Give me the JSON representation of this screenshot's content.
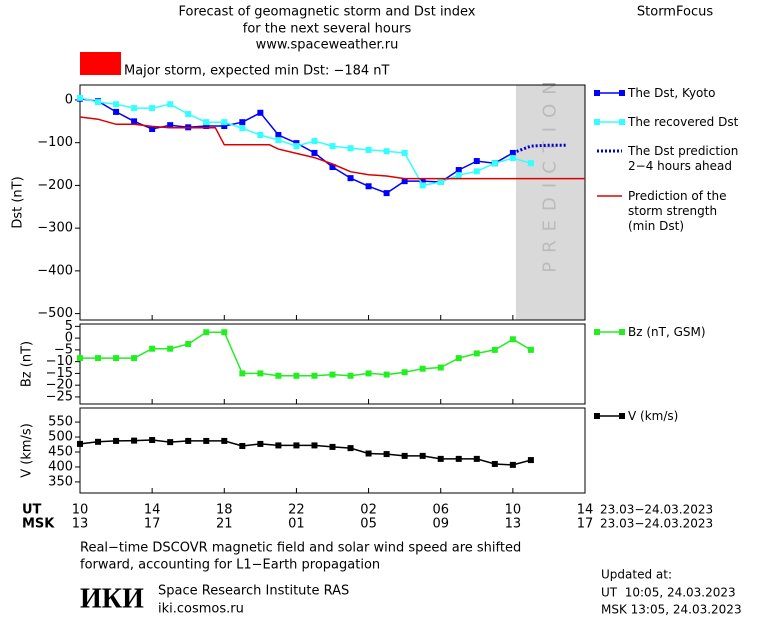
{
  "header": {
    "title_lines": [
      "Forecast of geomagnetic storm and Dst index",
      "for the next several hours",
      "www.spaceweather.ru"
    ],
    "brand": "StormFocus",
    "alert": {
      "color": "#ff0000",
      "text": "Major storm, expected min Dst: −184 nT"
    }
  },
  "chart_data": [
    {
      "type": "line",
      "ylabel": "Dst (nT)",
      "xlim": [
        0,
        28
      ],
      "ylim": [
        -515,
        35
      ],
      "xticks": [
        0,
        4,
        8,
        12,
        16,
        20,
        24,
        28
      ],
      "yticks": [
        0,
        {
          "value": -100,
          "label": "−100"
        },
        {
          "value": -200,
          "label": "−200"
        },
        {
          "value": -300,
          "label": "−300"
        },
        {
          "value": -400,
          "label": "−400"
        },
        {
          "value": -500,
          "label": "−500"
        }
      ],
      "shade": {
        "from": 24.17,
        "color": "#d9d9d9",
        "label": "PREDICTION"
      },
      "series": [
        {
          "name": "The Dst, Kyoto",
          "color": "#0000ff",
          "style": "solid",
          "marker": "square",
          "x": [
            0,
            1,
            2,
            3,
            4,
            5,
            6,
            7,
            8,
            9,
            10,
            11,
            12,
            13,
            14,
            15,
            16,
            17,
            18,
            19,
            20,
            21,
            22,
            23,
            24
          ],
          "values": [
            3,
            -3,
            -28,
            -50,
            -68,
            -59,
            -64,
            -61,
            -61,
            -52,
            -30,
            -82,
            -101,
            -124,
            -157,
            -183,
            -202,
            -218,
            -190,
            -190,
            -192,
            -164,
            -143,
            -148,
            -124
          ]
        },
        {
          "name": "The recovered Dst",
          "color": "#33ffff",
          "style": "solid",
          "marker": "square",
          "x": [
            0,
            1,
            2,
            3,
            4,
            5,
            6,
            7,
            8,
            9,
            10,
            11,
            12,
            13,
            14,
            15,
            16,
            17,
            18,
            19,
            20,
            21,
            22,
            23,
            24,
            25
          ],
          "values": [
            5,
            -5,
            -10,
            -19,
            -19,
            -10,
            -33,
            -52,
            -52,
            -66,
            -82,
            -94,
            -108,
            -96,
            -108,
            -113,
            -117,
            -120,
            -124,
            -200,
            -192,
            -176,
            -167,
            -148,
            -136,
            -148
          ]
        },
        {
          "name": "The Dst prediction 2−4 hours ahead",
          "color": "#0000cc",
          "style": "dotted",
          "marker": "none",
          "x": [
            24,
            25,
            26,
            27
          ],
          "values": [
            -124,
            -108,
            -106,
            -106
          ]
        },
        {
          "name": "Prediction of the storm strength (min Dst)",
          "color": "#dd0000",
          "style": "solid",
          "marker": "none",
          "x": [
            0,
            1,
            2,
            3,
            4,
            5,
            6,
            7,
            7.5,
            8,
            10.5,
            11,
            12,
            13,
            14,
            15,
            16,
            17,
            18,
            28
          ],
          "values": [
            -40,
            -45,
            -57,
            -57,
            -62,
            -65,
            -65,
            -65,
            -65,
            -105,
            -105,
            -115,
            -125,
            -135,
            -150,
            -168,
            -175,
            -178,
            -184,
            -184
          ]
        }
      ]
    },
    {
      "type": "line",
      "ylabel": "Bz (nT)",
      "xlim": [
        0,
        28
      ],
      "ylim": [
        -28,
        6
      ],
      "xticks": [
        0,
        4,
        8,
        12,
        16,
        20,
        24,
        28
      ],
      "yticks": [
        5,
        0,
        {
          "value": -5,
          "label": "−5"
        },
        {
          "value": -10,
          "label": "−10"
        },
        {
          "value": -15,
          "label": "−15"
        },
        {
          "value": -20,
          "label": "−20"
        },
        {
          "value": -25,
          "label": "−25"
        }
      ],
      "series": [
        {
          "name": "Bz (nT, GSM)",
          "color": "#22ee22",
          "style": "solid",
          "marker": "square",
          "x": [
            0,
            1,
            2,
            3,
            4,
            5,
            6,
            7,
            8,
            9,
            10,
            11,
            12,
            13,
            14,
            15,
            16,
            17,
            18,
            19,
            20,
            21,
            22,
            23,
            24,
            25
          ],
          "values": [
            -8.5,
            -8.5,
            -8.5,
            -8.5,
            -4.5,
            -4.5,
            -2.5,
            2.5,
            2.5,
            -15,
            -15,
            -16,
            -16,
            -16,
            -15.5,
            -16,
            -15,
            -15.5,
            -14.5,
            -13,
            -12.5,
            -8.5,
            -6.5,
            -5,
            -0.5,
            -5
          ]
        }
      ]
    },
    {
      "type": "line",
      "ylabel": "V (km/s)",
      "xlim": [
        0,
        28
      ],
      "ylim": [
        313,
        597
      ],
      "xticks": [
        {
          "value": 0,
          "label": "10"
        },
        {
          "value": 4,
          "label": "14"
        },
        {
          "value": 8,
          "label": "18"
        },
        {
          "value": 12,
          "label": "22"
        },
        {
          "value": 16,
          "label": "02"
        },
        {
          "value": 20,
          "label": "06"
        },
        {
          "value": 24,
          "label": "10"
        },
        {
          "value": 28,
          "label": "14"
        }
      ],
      "x2ticks": [
        {
          "value": 0,
          "label": "13"
        },
        {
          "value": 4,
          "label": "17"
        },
        {
          "value": 8,
          "label": "21"
        },
        {
          "value": 12,
          "label": "01"
        },
        {
          "value": 16,
          "label": "05"
        },
        {
          "value": 20,
          "label": "09"
        },
        {
          "value": 24,
          "label": "13"
        },
        {
          "value": 28,
          "label": "17"
        }
      ],
      "yticks": [
        350,
        400,
        450,
        500,
        550
      ],
      "series": [
        {
          "name": "V (km/s)",
          "color": "#000000",
          "style": "solid",
          "marker": "square",
          "x": [
            0,
            1,
            2,
            3,
            4,
            5,
            6,
            7,
            8,
            9,
            10,
            11,
            12,
            13,
            14,
            15,
            16,
            17,
            18,
            19,
            20,
            21,
            22,
            23,
            24,
            25
          ],
          "values": [
            477,
            484,
            487,
            488,
            490,
            483,
            487,
            487,
            487,
            470,
            477,
            472,
            472,
            472,
            467,
            463,
            445,
            443,
            437,
            437,
            427,
            427,
            427,
            410,
            407,
            423
          ]
        }
      ]
    }
  ],
  "time_axis": {
    "ut_label": "UT",
    "msk_label": "MSK",
    "ut_range": "23.03−24.03.2023",
    "msk_range": "23.03−24.03.2023"
  },
  "footer": {
    "note_lines": [
      "Real−time DSCOVR magnetic field and solar wind speed are shifted",
      "forward, accounting for L1−Earth propagation"
    ],
    "logo": "ИКИ",
    "institute": "Space Research Institute RAS",
    "url": "iki.cosmos.ru",
    "updated": [
      "Updated at:",
      "UT  10:05, 24.03.2023",
      "MSK 13:05, 24.03.2023"
    ]
  }
}
